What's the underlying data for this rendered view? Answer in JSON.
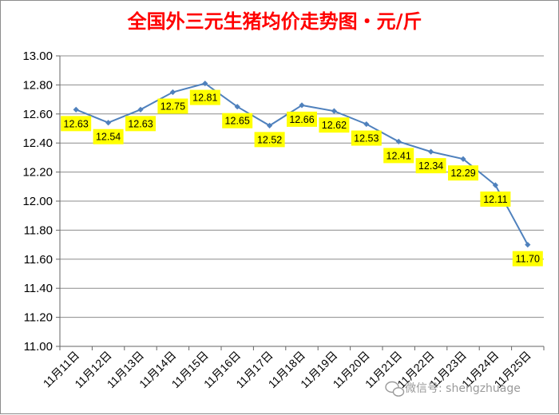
{
  "chart_data": {
    "type": "line",
    "title": "全国外三元生猪均价走势图・元/斤",
    "xlabel": "",
    "ylabel": "",
    "categories": [
      "11月11日",
      "11月12日",
      "11月13日",
      "11月14日",
      "11月15日",
      "11月16日",
      "11月17日",
      "11月18日",
      "11月19日",
      "11月20日",
      "11月21日",
      "11月22日",
      "11月23日",
      "11月24日",
      "11月25日"
    ],
    "series": [
      {
        "values": [
          12.63,
          12.54,
          12.63,
          12.75,
          12.81,
          12.65,
          12.52,
          12.66,
          12.62,
          12.53,
          12.41,
          12.34,
          12.29,
          12.11,
          11.7
        ]
      }
    ],
    "data_labels": [
      "12.63",
      "12.54",
      "12.63",
      "12.75",
      "12.81",
      "12.65",
      "12.52",
      "12.66",
      "12.62",
      "12.53",
      "12.41",
      "12.34",
      "12.29",
      "12.11",
      "11.70"
    ],
    "ylim": [
      11.0,
      13.0
    ],
    "yticks": [
      "13.00",
      "12.80",
      "12.60",
      "12.40",
      "12.20",
      "12.00",
      "11.80",
      "11.60",
      "11.40",
      "11.20",
      "11.00"
    ],
    "grid": true,
    "legend": "none",
    "colors": {
      "line": "#4f81bd",
      "label_bg": "#ffff00",
      "title": "#ff0000",
      "grid": "#8c8c8c"
    }
  },
  "watermark": {
    "text": "微信号: shengzhuage",
    "icon": "wechat-icon"
  }
}
